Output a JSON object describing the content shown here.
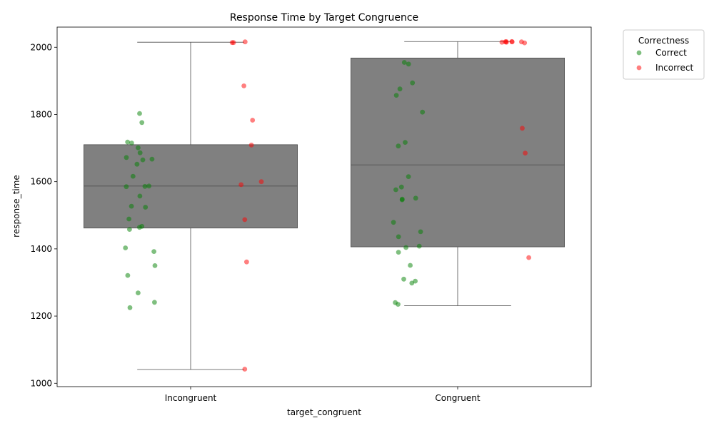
{
  "chart_data": {
    "type": "box+strip",
    "title": "Response Time by Target Congruence",
    "xlabel": "target_congruent",
    "ylabel": "response_time",
    "categories": [
      "Incongruent",
      "Congruent"
    ],
    "ylim": [
      990,
      2060
    ],
    "yticks": [
      1000,
      1200,
      1400,
      1600,
      1800,
      2000
    ],
    "legend": {
      "title": "Correctness",
      "placement": "upper-right-outside",
      "entries": [
        {
          "label": "Correct",
          "color": "#008000"
        },
        {
          "label": "Incorrect",
          "color": "#ff0000"
        }
      ]
    },
    "box_color": "#808080",
    "boxes": [
      {
        "category": "Incongruent",
        "whisker_low": 1041,
        "q1": 1462,
        "median": 1587,
        "q3": 1710,
        "whisker_high": 2015
      },
      {
        "category": "Congruent",
        "whisker_low": 1231,
        "q1": 1406,
        "median": 1650,
        "q3": 1968,
        "whisker_high": 2017
      }
    ],
    "series": [
      {
        "name": "Correct",
        "color": "#008000",
        "points": [
          {
            "category": "Incongruent",
            "y": [
              1803,
              1776,
              1718,
              1715,
              1701,
              1686,
              1672,
              1667,
              1665,
              1652,
              1616,
              1587,
              1586,
              1585,
              1557,
              1527,
              1524,
              1489,
              1467,
              1464,
              1458,
              1403,
              1392,
              1350,
              1321,
              1269,
              1241,
              1225
            ]
          },
          {
            "category": "Congruent",
            "y": [
              1955,
              1950,
              1894,
              1876,
              1857,
              1807,
              1717,
              1706,
              1615,
              1584,
              1576,
              1551,
              1548,
              1546,
              1479,
              1451,
              1436,
              1408,
              1404,
              1390,
              1351,
              1310,
              1304,
              1298,
              1240,
              1235
            ]
          }
        ]
      },
      {
        "name": "Incorrect",
        "color": "#ff0000",
        "points": [
          {
            "category": "Incongruent",
            "y": [
              2016,
              2014,
              2014,
              1885,
              1783,
              1709,
              1600,
              1591,
              1487,
              1361,
              1042
            ]
          },
          {
            "category": "Congruent",
            "y": [
              2013,
              2016,
              2017,
              2017,
              2016,
              2016,
              2015,
              2015,
              1759,
              1685,
              1374
            ]
          }
        ]
      }
    ]
  }
}
